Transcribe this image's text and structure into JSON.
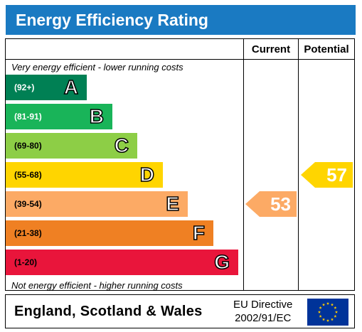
{
  "header": {
    "title": "Energy Efficiency Rating"
  },
  "columns": {
    "current": "Current",
    "potential": "Potential"
  },
  "notes": {
    "top": "Very energy efficient - lower running costs",
    "bottom": "Not energy efficient - higher running costs"
  },
  "footer": {
    "country": "England, Scotland & Wales",
    "directive_line1": "EU Directive",
    "directive_line2": "2002/91/EC",
    "flag_icon": "eu-flag-icon"
  },
  "chart_data": {
    "type": "bar",
    "title": "Energy Efficiency Rating",
    "bands": [
      {
        "letter": "A",
        "range": "(92+)",
        "color": "#008054",
        "text_color": "#ffffff"
      },
      {
        "letter": "B",
        "range": "(81-91)",
        "color": "#19b459",
        "text_color": "#ffffff"
      },
      {
        "letter": "C",
        "range": "(69-80)",
        "color": "#8dce46",
        "text_color": "#000000"
      },
      {
        "letter": "D",
        "range": "(55-68)",
        "color": "#ffd500",
        "text_color": "#000000"
      },
      {
        "letter": "E",
        "range": "(39-54)",
        "color": "#fcaa65",
        "text_color": "#000000"
      },
      {
        "letter": "F",
        "range": "(21-38)",
        "color": "#ef8023",
        "text_color": "#000000"
      },
      {
        "letter": "G",
        "range": "(1-20)",
        "color": "#e9153b",
        "text_color": "#000000"
      }
    ],
    "current": {
      "value": 53,
      "band": "E",
      "color": "#fcaa65"
    },
    "potential": {
      "value": 57,
      "band": "D",
      "color": "#ffd500"
    }
  }
}
